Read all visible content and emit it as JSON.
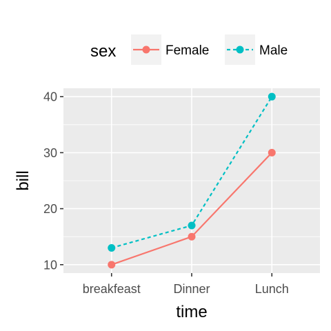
{
  "chart_data": {
    "type": "line",
    "categories": [
      "breakfeast",
      "Dinner",
      "Lunch"
    ],
    "series": [
      {
        "name": "Female",
        "values": [
          10,
          15,
          30
        ],
        "color": "#F8766D",
        "line_style": "solid"
      },
      {
        "name": "Male",
        "values": [
          13,
          17,
          40
        ],
        "color": "#00BFC4",
        "line_style": "dashed"
      }
    ],
    "xlabel": "time",
    "ylabel": "bill",
    "yticks": [
      10,
      20,
      30,
      40
    ],
    "ylim": [
      8.5,
      41.5
    ],
    "grid": true,
    "legend": {
      "title": "sex",
      "position": "top"
    },
    "panel_color": "#EBEBEB"
  }
}
